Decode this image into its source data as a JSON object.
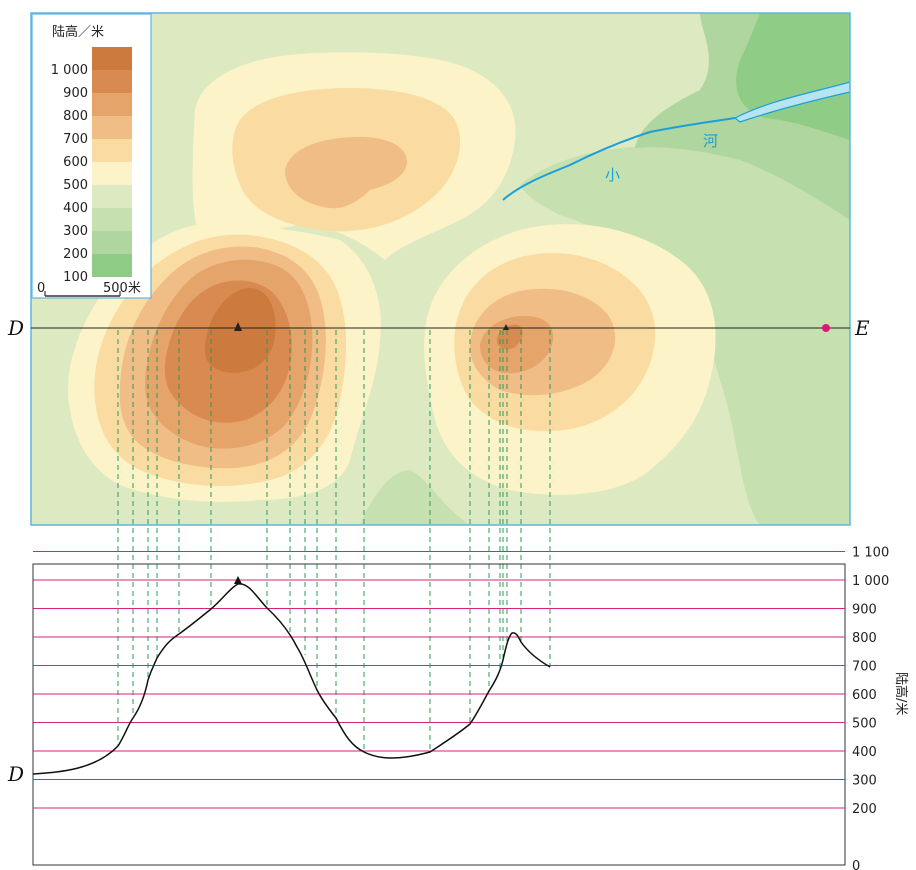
{
  "map": {
    "legend_title": "陆高／米",
    "legend_values": [
      "1 000",
      "900",
      "800",
      "700",
      "600",
      "500",
      "400",
      "300",
      "200",
      "100"
    ],
    "legend_colors": [
      "#cc7a3e",
      "#d98a50",
      "#e4a46a",
      "#efbd85",
      "#fadca3",
      "#fcf4c8",
      "#dde9c1",
      "#c6e0b0",
      "#aed69e",
      "#8fcc86"
    ],
    "scale_zero": "0",
    "scale_label": "500米",
    "river_char_1": "小",
    "river_char_2": "河",
    "point_D": "D",
    "point_E": "E",
    "colors": {
      "river": "#1aa0d8",
      "frame": "#5fb5e0",
      "section_line": "#222222",
      "marker": "#e0147a",
      "projection": "#2a9a5a"
    }
  },
  "profile": {
    "start_label": "D",
    "axis_label": "陆高/米",
    "ticks": [
      "1 100",
      "1 000",
      "900",
      "800",
      "700",
      "600",
      "500",
      "400",
      "300",
      "200",
      "0"
    ],
    "gridline_color": "#d8237a"
  }
}
